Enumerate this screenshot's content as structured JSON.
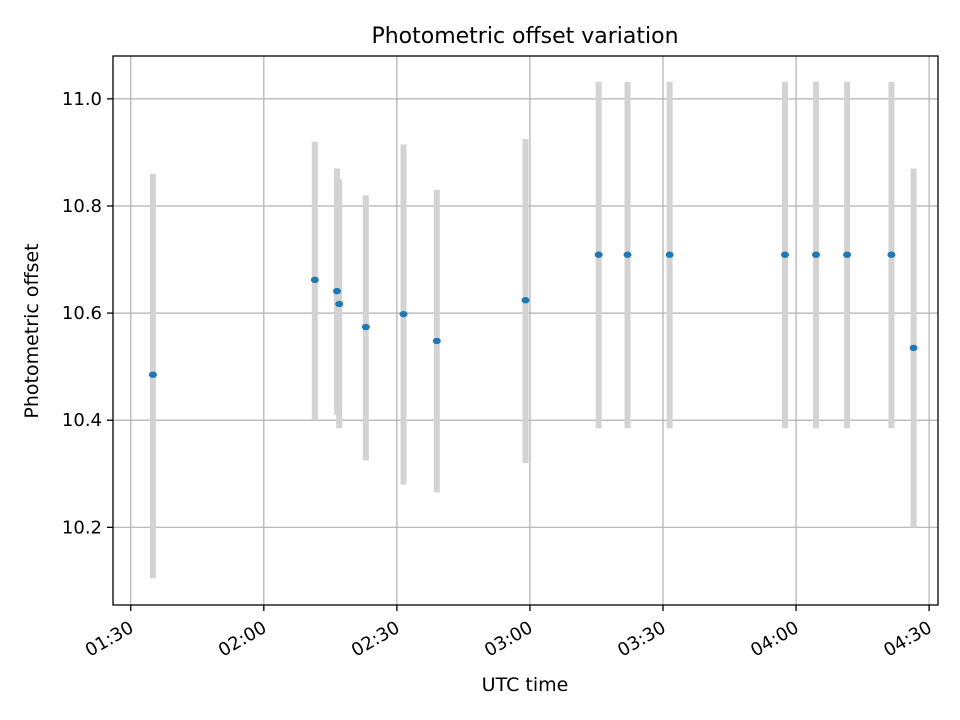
{
  "chart_data": {
    "type": "scatter",
    "title": "Photometric offset variation",
    "xlabel": "UTC time",
    "ylabel": "Photometric offset",
    "xlim": [
      "01:26",
      "04:32"
    ],
    "ylim": [
      10.055,
      11.08
    ],
    "grid": true,
    "x_ticks": [
      "01:30",
      "02:00",
      "02:30",
      "03:00",
      "03:30",
      "04:00",
      "04:30"
    ],
    "y_ticks": [
      10.2,
      10.4,
      10.6,
      10.8,
      11.0
    ],
    "y_tick_labels": [
      "10.2",
      "10.4",
      "10.6",
      "10.8",
      "11.0"
    ],
    "error_bar_color": "#d3d3d3",
    "point_color": "#1f77b4",
    "series": [
      {
        "name": "Photometric offset",
        "points": [
          {
            "time": "01:35:00",
            "y": 10.485,
            "ylow": 10.105,
            "yhigh": 10.86
          },
          {
            "time": "02:11:30",
            "y": 10.662,
            "ylow": 10.4,
            "yhigh": 10.92
          },
          {
            "time": "02:16:30",
            "y": 10.641,
            "ylow": 10.41,
            "yhigh": 10.87
          },
          {
            "time": "02:17:00",
            "y": 10.617,
            "ylow": 10.385,
            "yhigh": 10.85
          },
          {
            "time": "02:23:00",
            "y": 10.574,
            "ylow": 10.325,
            "yhigh": 10.82
          },
          {
            "time": "02:31:30",
            "y": 10.598,
            "ylow": 10.28,
            "yhigh": 10.915
          },
          {
            "time": "02:39:00",
            "y": 10.548,
            "ylow": 10.265,
            "yhigh": 10.83
          },
          {
            "time": "02:59:00",
            "y": 10.624,
            "ylow": 10.32,
            "yhigh": 10.925
          },
          {
            "time": "03:15:30",
            "y": 10.709,
            "ylow": 10.385,
            "yhigh": 11.032
          },
          {
            "time": "03:22:00",
            "y": 10.709,
            "ylow": 10.385,
            "yhigh": 11.032
          },
          {
            "time": "03:31:30",
            "y": 10.709,
            "ylow": 10.385,
            "yhigh": 11.032
          },
          {
            "time": "03:57:30",
            "y": 10.709,
            "ylow": 10.385,
            "yhigh": 11.032
          },
          {
            "time": "04:04:30",
            "y": 10.709,
            "ylow": 10.385,
            "yhigh": 11.032
          },
          {
            "time": "04:11:30",
            "y": 10.709,
            "ylow": 10.385,
            "yhigh": 11.032
          },
          {
            "time": "04:21:30",
            "y": 10.709,
            "ylow": 10.385,
            "yhigh": 11.032
          },
          {
            "time": "04:26:30",
            "y": 10.535,
            "ylow": 10.2,
            "yhigh": 10.87
          }
        ]
      }
    ]
  }
}
